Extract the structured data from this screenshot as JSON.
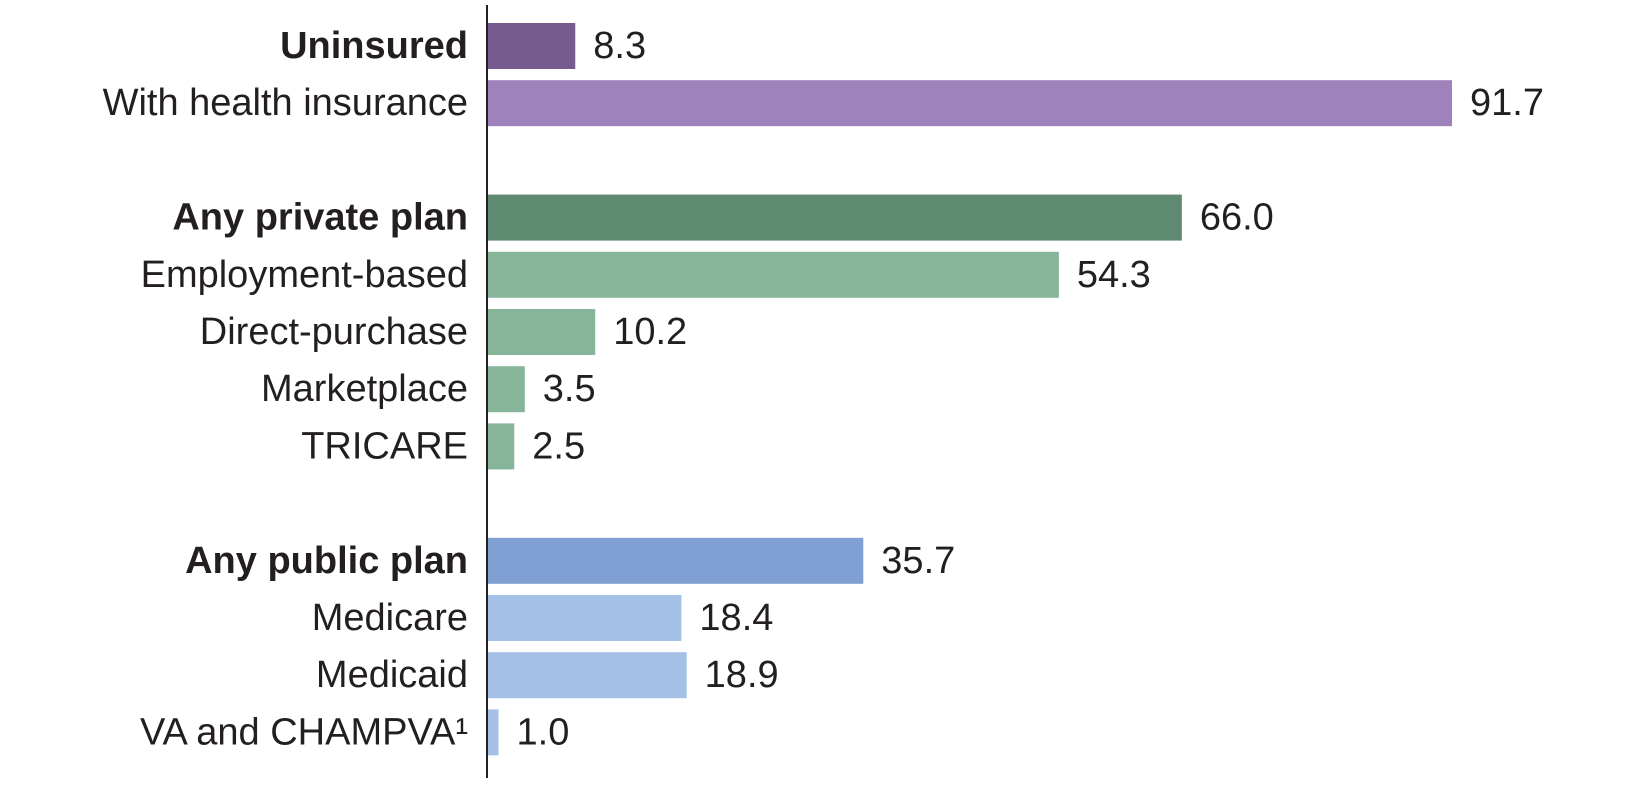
{
  "chart_data": {
    "type": "bar",
    "orientation": "horizontal",
    "categories": [
      "Uninsured",
      "With health insurance",
      null,
      "Any private plan",
      "Employment-based",
      "Direct-purchase",
      "Marketplace",
      "TRICARE",
      null,
      "Any public plan",
      "Medicare",
      "Medicaid",
      "VA and CHAMPVA¹"
    ],
    "values": [
      8.3,
      91.7,
      null,
      66,
      54.3,
      10.2,
      3.5,
      2.5,
      null,
      35.7,
      18.4,
      18.9,
      1
    ],
    "value_labels": [
      "8.3",
      "91.7",
      null,
      "66.0",
      "54.3",
      "10.2",
      "3.5",
      "2.5",
      null,
      "35.7",
      "18.4",
      "18.9",
      "1.0"
    ],
    "colors": [
      "#775b8e",
      "#9e82bb",
      null,
      "#5d8a70",
      "#86b59a",
      "#86b59a",
      "#86b59a",
      "#86b59a",
      null,
      "#80a0d4",
      "#a4c0e6",
      "#a4c0e6",
      "#a4c0e6"
    ],
    "bold": [
      true,
      false,
      null,
      true,
      false,
      false,
      false,
      false,
      null,
      true,
      false,
      false,
      false
    ]
  }
}
